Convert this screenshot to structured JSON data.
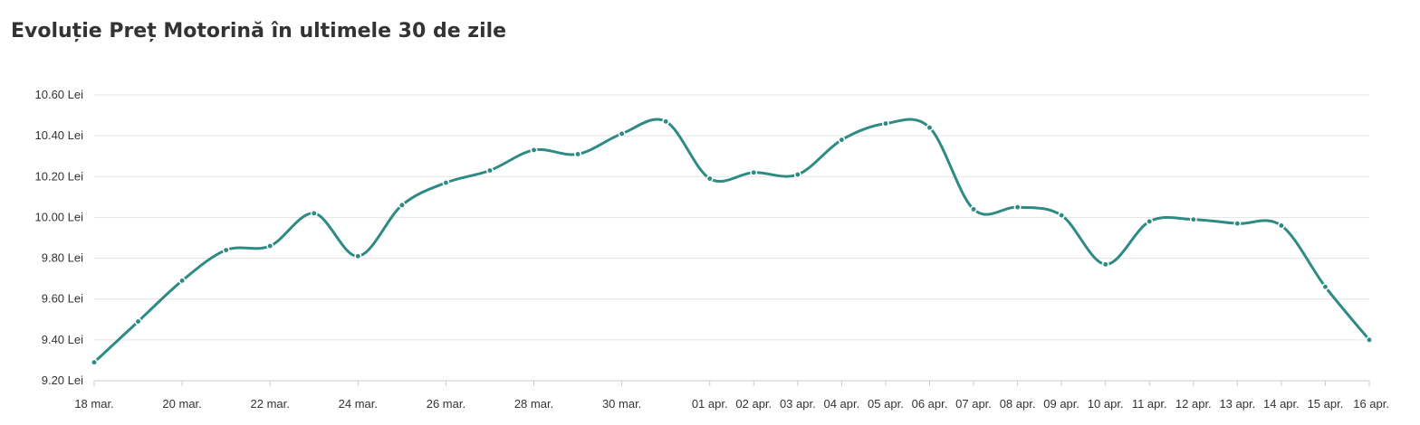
{
  "chart_data": {
    "type": "line",
    "title": "Evoluție Preț Motorină în ultimele 30 de zile",
    "xlabel": "",
    "ylabel": "",
    "y_unit_suffix": " Lei",
    "ylim": [
      9.2,
      10.6
    ],
    "y_ticks": [
      "9.20 Lei",
      "9.40 Lei",
      "9.60 Lei",
      "9.80 Lei",
      "10.00 Lei",
      "10.20 Lei",
      "10.40 Lei",
      "10.60 Lei"
    ],
    "y_tick_values": [
      9.2,
      9.4,
      9.6,
      9.8,
      10.0,
      10.2,
      10.4,
      10.6
    ],
    "x_tick_labels": [
      "18 mar.",
      "20 mar.",
      "22 mar.",
      "24 mar.",
      "26 mar.",
      "28 mar.",
      "30 mar.",
      "01 apr.",
      "02 apr.",
      "03 apr.",
      "04 apr.",
      "05 apr.",
      "06 apr.",
      "07 apr.",
      "08 apr.",
      "09 apr.",
      "10 apr.",
      "11 apr.",
      "12 apr.",
      "13 apr.",
      "14 apr.",
      "15 apr.",
      "16 apr."
    ],
    "x_tick_dates": [
      "18 mar.",
      "20 mar.",
      "22 mar.",
      "24 mar.",
      "26 mar.",
      "28 mar.",
      "30 mar.",
      "01 apr.",
      "02 apr.",
      "03 apr.",
      "04 apr.",
      "05 apr.",
      "06 apr.",
      "07 apr.",
      "08 apr.",
      "09 apr.",
      "10 apr.",
      "11 apr.",
      "12 apr.",
      "13 apr.",
      "14 apr.",
      "15 apr.",
      "16 apr."
    ],
    "x": [
      "18 mar.",
      "19 mar.",
      "20 mar.",
      "21 mar.",
      "22 mar.",
      "23 mar.",
      "24 mar.",
      "25 mar.",
      "26 mar.",
      "27 mar.",
      "28 mar.",
      "29 mar.",
      "30 mar.",
      "31 mar.",
      "01 apr.",
      "02 apr.",
      "03 apr.",
      "04 apr.",
      "05 apr.",
      "06 apr.",
      "07 apr.",
      "08 apr.",
      "09 apr.",
      "10 apr.",
      "11 apr.",
      "12 apr.",
      "13 apr.",
      "14 apr.",
      "15 apr.",
      "16 apr."
    ],
    "series": [
      {
        "name": "",
        "color": "#2e8b84",
        "values": [
          9.29,
          9.49,
          9.69,
          9.84,
          9.86,
          10.02,
          9.81,
          10.06,
          10.17,
          10.23,
          10.33,
          10.31,
          10.41,
          10.47,
          10.19,
          10.22,
          10.21,
          10.38,
          10.46,
          10.44,
          10.04,
          10.05,
          10.01,
          9.77,
          9.98,
          9.99,
          9.97,
          9.96,
          9.66,
          9.4
        ]
      }
    ],
    "grid": true,
    "legend": "none",
    "colors": {
      "line": "#2e8b84",
      "grid": "#e3e3e3",
      "axis": "#cccccc",
      "text": "#333333"
    }
  }
}
